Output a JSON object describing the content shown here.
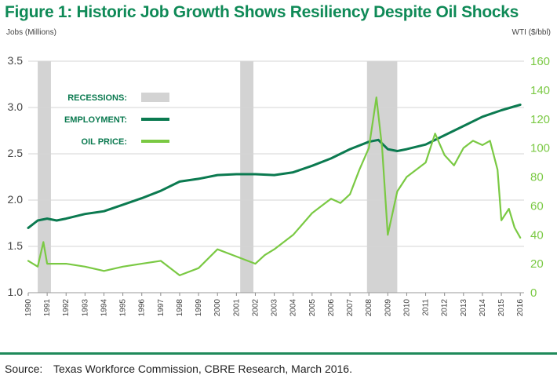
{
  "title": "Figure 1: Historic Job Growth Shows Resiliency Despite Oil Shocks",
  "source": {
    "label": "Source:",
    "text": "Texas Workforce Commission, CBRE Research, March 2016."
  },
  "colors": {
    "title": "#0f8a57",
    "employment": "#0b7a50",
    "oil": "#7ac943",
    "recession": "#d3d3d3",
    "grid": "#d4d4d4",
    "axis_left_text": "#444444",
    "axis_right_text": "#7ac943",
    "footer_rule": "#1f8a5a"
  },
  "chart_data": {
    "type": "line",
    "x_ticks": [
      "1990",
      "1991",
      "1992",
      "1993",
      "1994",
      "1995",
      "1996",
      "1997",
      "1998",
      "1999",
      "2000",
      "2001",
      "2002",
      "2003",
      "2004",
      "2005",
      "2006",
      "2007",
      "2008",
      "2009",
      "2010",
      "2011",
      "2012",
      "2013",
      "2014",
      "2015",
      "2016"
    ],
    "xlim": [
      1990,
      2016.2
    ],
    "y_left": {
      "label": "Jobs (Millions)",
      "ticks": [
        "1.0",
        "1.5",
        "2.0",
        "2.5",
        "3.0",
        "3.5"
      ],
      "lim": [
        1.0,
        3.5
      ]
    },
    "y_right": {
      "label": "WTI ($/bbl)",
      "ticks": [
        "0",
        "20",
        "40",
        "60",
        "80",
        "100",
        "120",
        "140",
        "160"
      ],
      "lim": [
        0,
        160
      ]
    },
    "grid": true,
    "legend": {
      "position": "top-left",
      "items": [
        {
          "label": "RECESSIONS:",
          "kind": "box"
        },
        {
          "label": "EMPLOYMENT:",
          "kind": "line-employment"
        },
        {
          "label": "OIL PRICE:",
          "kind": "line-oil"
        }
      ]
    },
    "recessions": [
      [
        1990.5,
        1991.2
      ],
      [
        2001.2,
        2001.9
      ],
      [
        2007.9,
        2009.5
      ]
    ],
    "series": [
      {
        "name": "EMPLOYMENT",
        "axis": "left",
        "x": [
          1990,
          1990.5,
          1991,
          1991.5,
          1992,
          1993,
          1994,
          1995,
          1996,
          1997,
          1998,
          1999,
          2000,
          2001,
          2002,
          2003,
          2004,
          2005,
          2006,
          2007,
          2008,
          2008.5,
          2009,
          2009.5,
          2010,
          2011,
          2012,
          2013,
          2014,
          2015,
          2015.5,
          2016
        ],
        "y": [
          1.7,
          1.78,
          1.8,
          1.78,
          1.8,
          1.85,
          1.88,
          1.95,
          2.02,
          2.1,
          2.2,
          2.23,
          2.27,
          2.28,
          2.28,
          2.27,
          2.3,
          2.37,
          2.45,
          2.55,
          2.63,
          2.65,
          2.55,
          2.53,
          2.55,
          2.6,
          2.7,
          2.8,
          2.9,
          2.97,
          3.0,
          3.03
        ]
      },
      {
        "name": "OIL PRICE",
        "axis": "right",
        "x": [
          1990,
          1990.5,
          1990.8,
          1991,
          1991.5,
          1992,
          1993,
          1994,
          1995,
          1996,
          1997,
          1998,
          1999,
          2000,
          2001,
          2002,
          2002.5,
          2003,
          2004,
          2005,
          2005.5,
          2006,
          2006.5,
          2007,
          2007.5,
          2008,
          2008.4,
          2008.7,
          2009,
          2009.5,
          2010,
          2011,
          2011.5,
          2012,
          2012.5,
          2013,
          2013.5,
          2014,
          2014.4,
          2014.8,
          2015,
          2015.4,
          2015.7,
          2016
        ],
        "y": [
          22,
          18,
          35,
          20,
          20,
          20,
          18,
          15,
          18,
          20,
          22,
          12,
          17,
          30,
          25,
          20,
          26,
          30,
          40,
          55,
          60,
          65,
          62,
          68,
          85,
          100,
          135,
          100,
          40,
          70,
          80,
          90,
          110,
          95,
          88,
          100,
          105,
          102,
          105,
          85,
          50,
          58,
          45,
          38
        ]
      }
    ]
  }
}
